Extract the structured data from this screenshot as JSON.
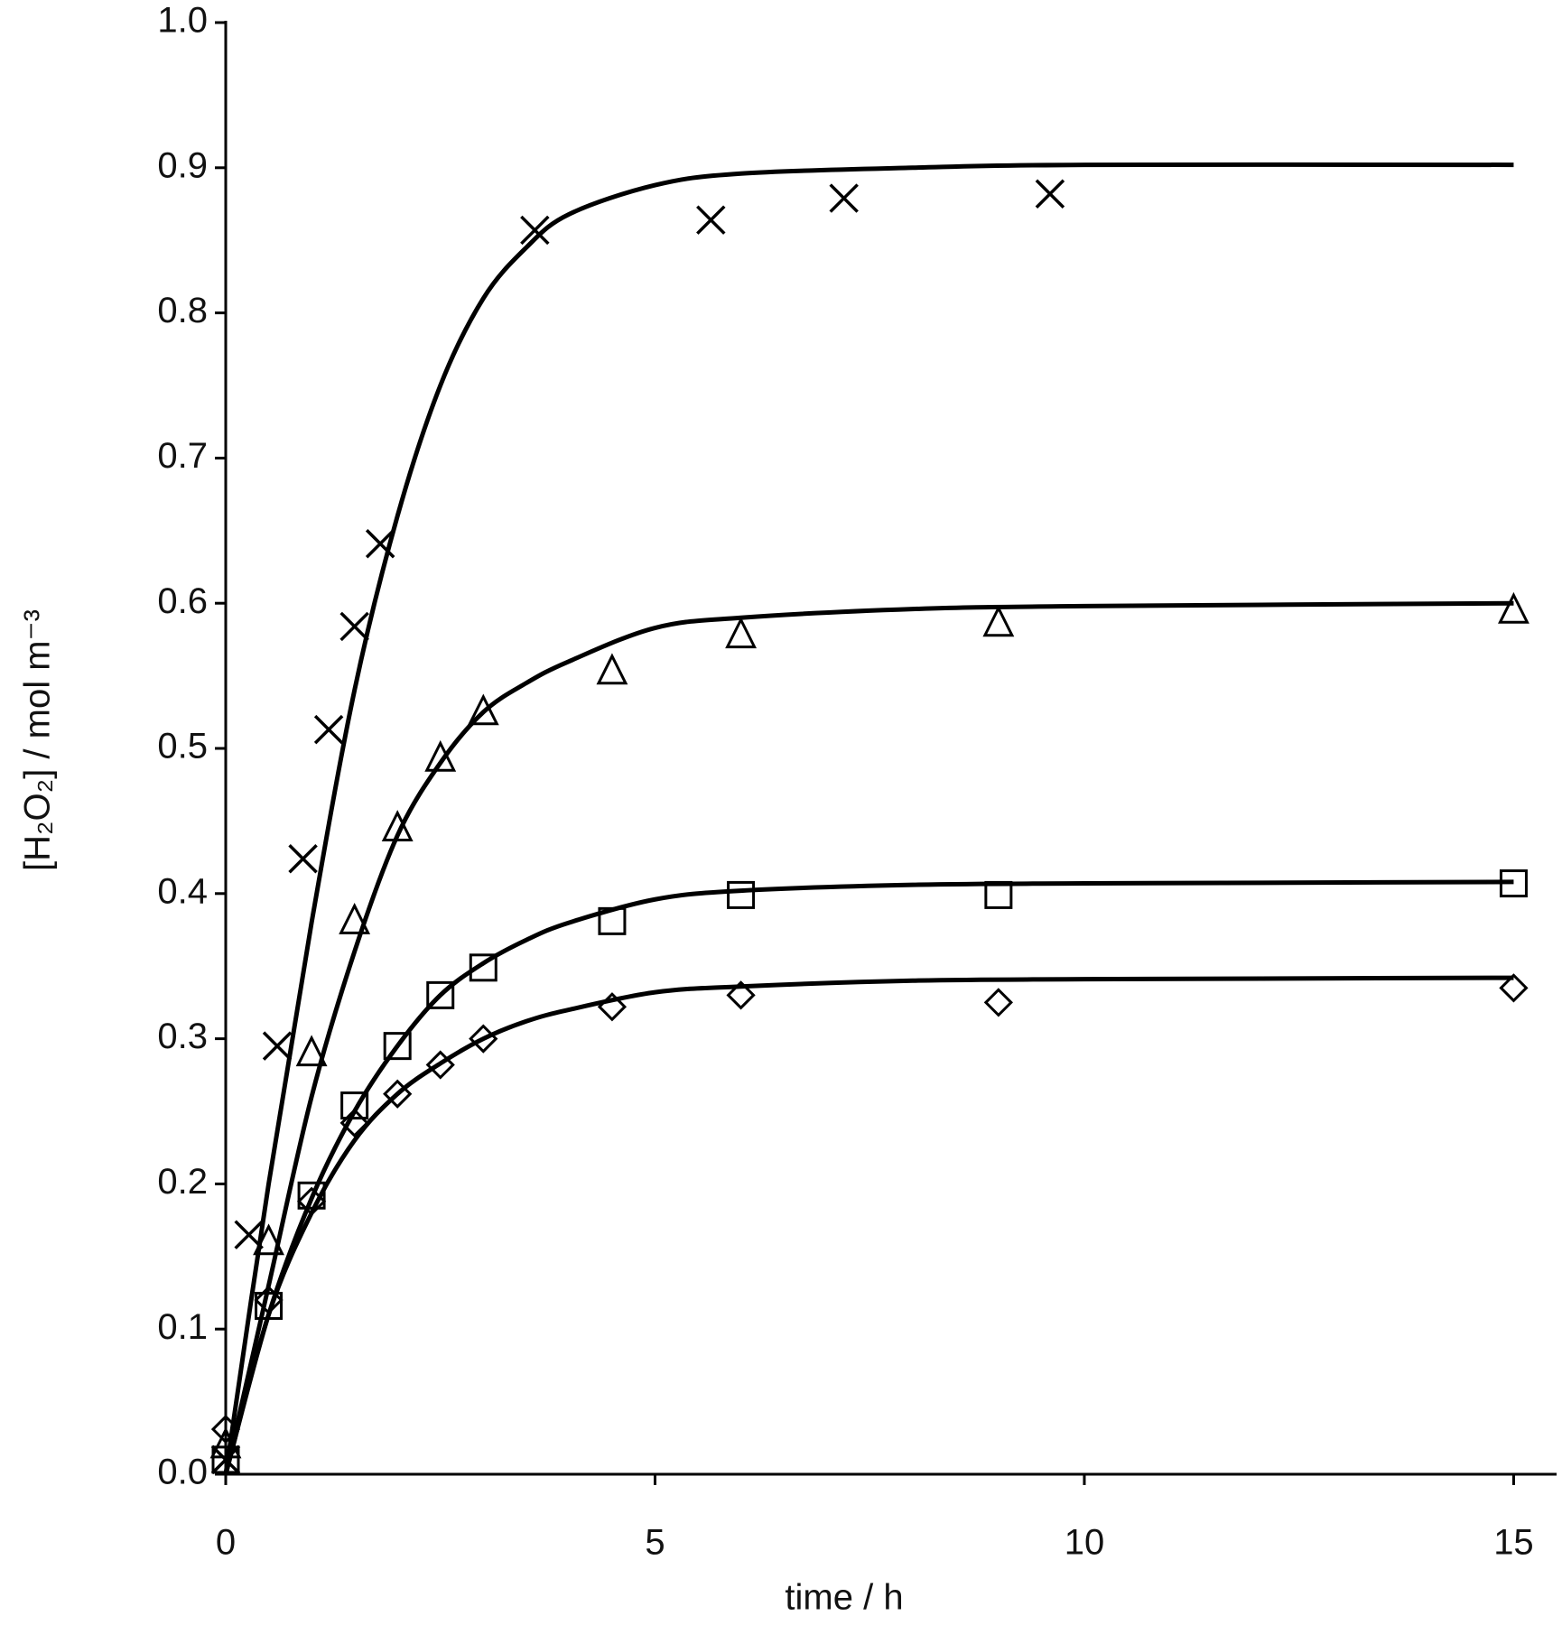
{
  "chart_data": {
    "type": "scatter",
    "xlabel": "time / h",
    "ylabel": "[H₂O₂]  / mol m⁻³",
    "xlim": [
      0,
      15.5
    ],
    "ylim": [
      0,
      1
    ],
    "xticks": [
      0,
      5,
      10,
      15
    ],
    "yticks": [
      {
        "value": 0,
        "label": "0.0"
      },
      0.1,
      0.2,
      0.3,
      0.4,
      0.5,
      0.6,
      0.7,
      0.8,
      0.9,
      {
        "value": 1,
        "label": "1.0"
      }
    ],
    "grid": false,
    "series": [
      {
        "marker": "cross",
        "color": "#000000",
        "x": [
          0,
          0.27,
          0.6,
          0.9,
          1.2,
          1.5,
          1.8,
          3.6,
          5.65,
          7.2,
          9.6
        ],
        "values": [
          0.01,
          0.165,
          0.295,
          0.424,
          0.513,
          0.584,
          0.641,
          0.857,
          0.864,
          0.879,
          0.882
        ],
        "fit": {
          "x": [
            0,
            0.5,
            1,
            1.5,
            2,
            2.5,
            3,
            3.5,
            4,
            5,
            6,
            8,
            10,
            15
          ],
          "values": [
            0,
            0.2,
            0.38,
            0.54,
            0.66,
            0.75,
            0.81,
            0.845,
            0.868,
            0.888,
            0.896,
            0.9,
            0.902,
            0.902
          ]
        }
      },
      {
        "marker": "triangle",
        "color": "#000000",
        "x": [
          0,
          0.5,
          1,
          1.5,
          2,
          2.5,
          3,
          4.5,
          6,
          9,
          15
        ],
        "values": [
          0.02,
          0.16,
          0.29,
          0.381,
          0.445,
          0.493,
          0.525,
          0.553,
          0.578,
          0.586,
          0.595
        ],
        "fit": {
          "x": [
            0,
            0.5,
            1,
            1.5,
            2,
            2.5,
            3,
            3.5,
            4,
            5,
            6,
            8,
            10,
            15
          ],
          "values": [
            0,
            0.13,
            0.26,
            0.36,
            0.44,
            0.49,
            0.525,
            0.545,
            0.56,
            0.583,
            0.59,
            0.596,
            0.598,
            0.6
          ]
        }
      },
      {
        "marker": "square",
        "color": "#000000",
        "x": [
          0,
          0.5,
          1,
          1.5,
          2,
          2.5,
          3,
          4.5,
          6,
          9,
          15
        ],
        "values": [
          0.01,
          0.116,
          0.192,
          0.254,
          0.295,
          0.33,
          0.349,
          0.381,
          0.399,
          0.399,
          0.407
        ],
        "fit": {
          "x": [
            0,
            0.5,
            1,
            1.5,
            2,
            2.5,
            3,
            3.5,
            4,
            5,
            6,
            8,
            10,
            15
          ],
          "values": [
            0,
            0.11,
            0.19,
            0.25,
            0.295,
            0.33,
            0.352,
            0.368,
            0.38,
            0.396,
            0.402,
            0.406,
            0.407,
            0.408
          ]
        }
      },
      {
        "marker": "diamond",
        "color": "#000000",
        "x": [
          0,
          0.5,
          1,
          1.5,
          2,
          2.5,
          3,
          4.5,
          6,
          9,
          15
        ],
        "values": [
          0.031,
          0.12,
          0.188,
          0.242,
          0.262,
          0.282,
          0.3,
          0.322,
          0.33,
          0.325,
          0.335
        ],
        "fit": {
          "x": [
            0,
            0.5,
            1,
            1.5,
            2,
            2.5,
            3,
            3.5,
            4,
            5,
            6,
            8,
            10,
            15
          ],
          "values": [
            0,
            0.11,
            0.18,
            0.23,
            0.262,
            0.283,
            0.3,
            0.312,
            0.32,
            0.332,
            0.336,
            0.34,
            0.341,
            0.342
          ]
        }
      }
    ]
  }
}
